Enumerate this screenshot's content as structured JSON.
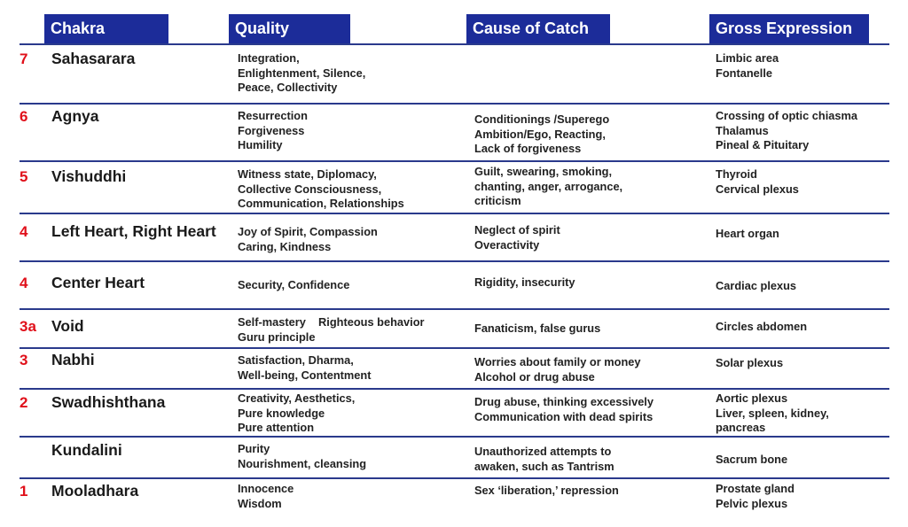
{
  "headers": {
    "chakra": "Chakra",
    "quality": "Quality",
    "cause": "Cause of Catch",
    "gross": "Gross Expression"
  },
  "rows": [
    {
      "number": "7",
      "name": "Sahasarara",
      "quality": [
        "Integration,",
        "Enlightenment, Silence,",
        "Peace, Collectivity"
      ],
      "cause": [],
      "gross": [
        "Limbic area",
        "Fontanelle"
      ]
    },
    {
      "number": "6",
      "name": "Agnya",
      "quality": [
        "Resurrection",
        "Forgiveness",
        "Humility"
      ],
      "cause": [
        "Conditionings /Superego",
        "Ambition/Ego, Reacting,",
        "Lack of forgiveness"
      ],
      "gross": [
        "Crossing of optic chiasma",
        "Thalamus",
        "Pineal & Pituitary"
      ]
    },
    {
      "number": "5",
      "name": "Vishuddhi",
      "quality": [
        "Witness state, Diplomacy,",
        "Collective Consciousness,",
        "Communication, Relationships"
      ],
      "cause": [
        "Guilt, swearing, smoking,",
        "chanting, anger, arrogance,",
        "criticism"
      ],
      "gross": [
        "Thyroid",
        "Cervical plexus"
      ]
    },
    {
      "number": "4",
      "name": "Left Heart, Right Heart",
      "quality": [
        "Joy of Spirit, Compassion",
        "Caring, Kindness"
      ],
      "cause": [
        "Neglect of spirit",
        "Overactivity"
      ],
      "gross": [
        "Heart organ"
      ]
    },
    {
      "number": "4",
      "name": "Center Heart",
      "quality": [
        "Security, Confidence"
      ],
      "cause": [
        "Rigidity, insecurity"
      ],
      "gross": [
        "Cardiac plexus"
      ]
    },
    {
      "number": "3a",
      "name": "Void",
      "quality": [
        "Self-mastery    Righteous behavior",
        "Guru principle"
      ],
      "cause": [
        "Fanaticism, false gurus"
      ],
      "gross": [
        "Circles abdomen"
      ]
    },
    {
      "number": "3",
      "name": "Nabhi",
      "quality": [
        "Satisfaction, Dharma,",
        "Well-being, Contentment"
      ],
      "cause": [
        "Worries about family or money",
        "Alcohol or drug abuse"
      ],
      "gross": [
        "Solar plexus"
      ]
    },
    {
      "number": "2",
      "name": "Swadhishthana",
      "quality": [
        "Creativity, Aesthetics,",
        "Pure knowledge",
        "Pure attention"
      ],
      "cause": [
        "Drug abuse, thinking excessively",
        "Communication with dead spirits"
      ],
      "gross": [
        "Aortic plexus",
        "Liver, spleen, kidney,",
        "pancreas"
      ]
    },
    {
      "number": "",
      "name": "Kundalini",
      "quality": [
        "Purity",
        "Nourishment, cleansing"
      ],
      "cause": [
        "Unauthorized attempts to",
        "awaken, such as Tantrism"
      ],
      "gross": [
        "Sacrum bone"
      ]
    },
    {
      "number": "1",
      "name": "Mooladhara",
      "quality": [
        "Innocence",
        "Wisdom"
      ],
      "cause": [
        "Sex ‘liberation,’ repression"
      ],
      "gross": [
        "Prostate gland",
        "Pelvic plexus"
      ]
    }
  ]
}
